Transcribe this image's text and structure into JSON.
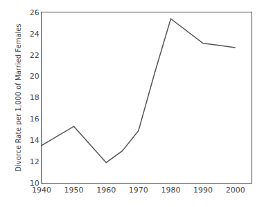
{
  "chart_data": {
    "type": "line",
    "ylabel": "Divorce Rate per 1,000 of Married Females",
    "x": [
      1940,
      1945,
      1950,
      1960,
      1965,
      1970,
      1975,
      1980,
      1990,
      1995,
      2000
    ],
    "values": [
      13.5,
      14.4,
      15.3,
      11.9,
      13.0,
      14.9,
      20.3,
      25.4,
      23.1,
      22.9,
      22.7
    ],
    "color": "#555555",
    "xlim": [
      1940,
      2005
    ],
    "ylim": [
      10,
      26
    ],
    "xticks": [
      1940,
      1950,
      1960,
      1970,
      1980,
      1990,
      2000
    ],
    "yticks": [
      10,
      12,
      14,
      16,
      18,
      20,
      22,
      24,
      26
    ],
    "grid": false
  }
}
